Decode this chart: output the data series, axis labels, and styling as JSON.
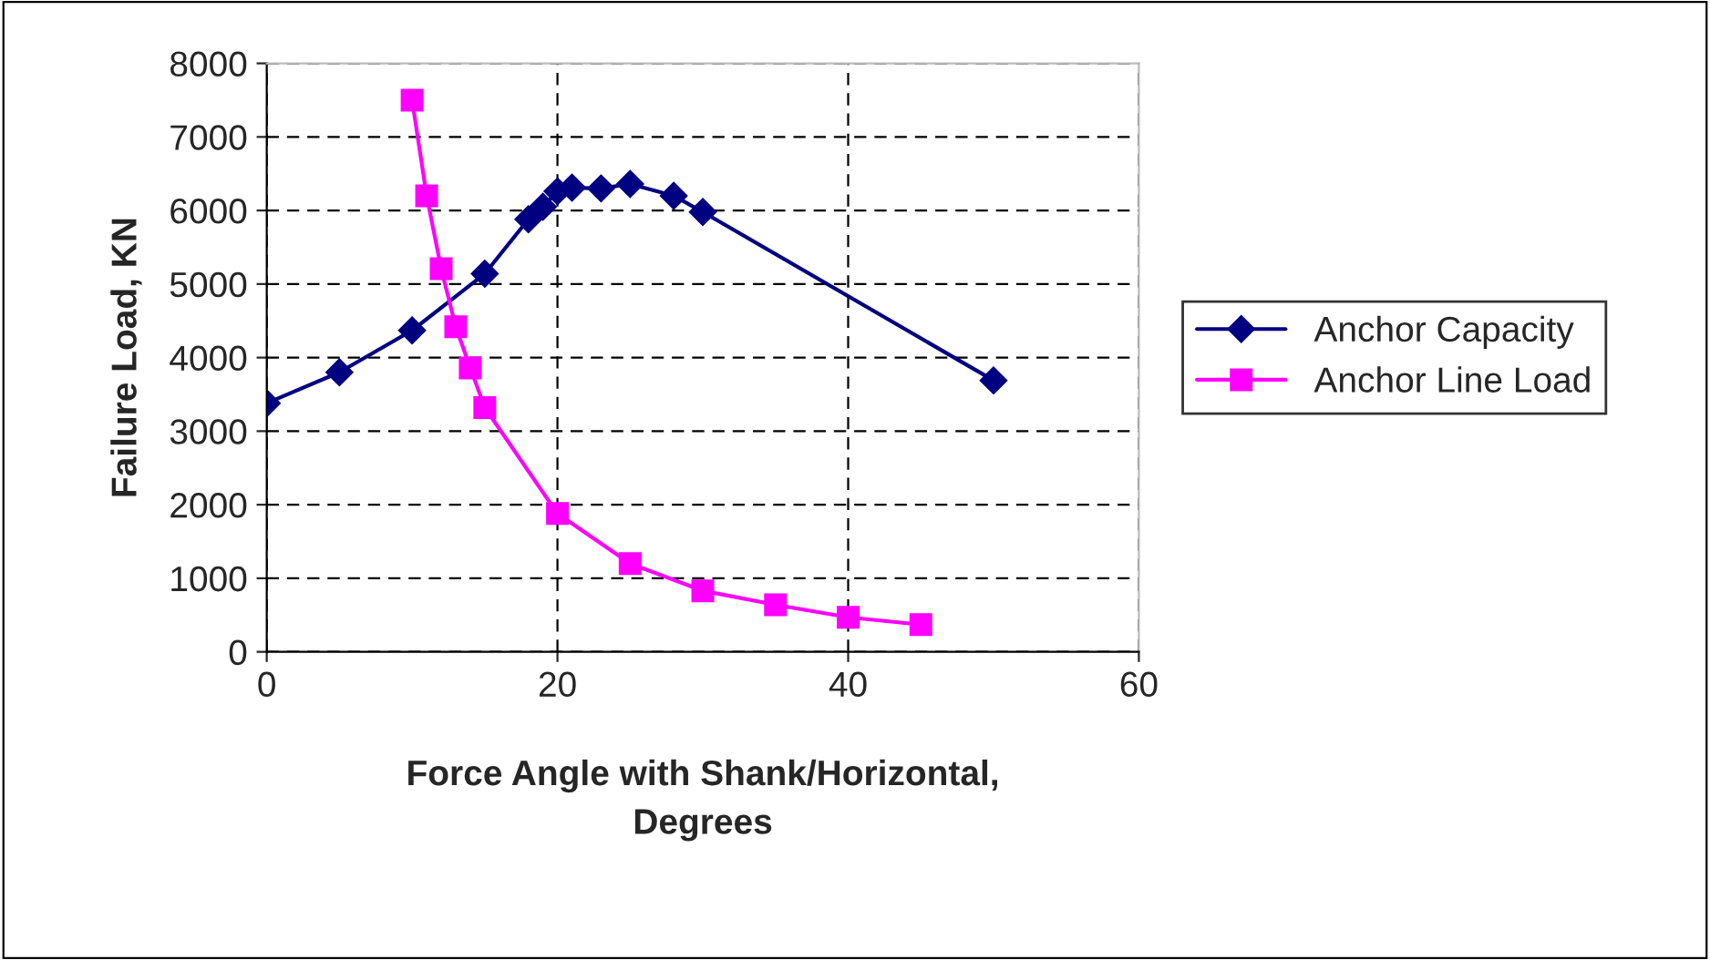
{
  "chart_data": {
    "type": "line",
    "xlabel": "Force Angle with Shank/Horizontal,\nDegrees",
    "ylabel": "Failure Load, KN",
    "xlim": [
      0,
      60
    ],
    "xticks": [
      0,
      20,
      40,
      60
    ],
    "ylim": [
      0,
      8000
    ],
    "yticks": [
      0,
      1000,
      2000,
      3000,
      4000,
      5000,
      6000,
      7000,
      8000
    ],
    "grid": true,
    "legend": "right",
    "line_style": "solid",
    "series": [
      {
        "name": "Anchor Capacity",
        "color": "#000080",
        "marker": "diamond",
        "x": [
          0,
          5,
          10,
          15,
          18,
          19,
          20,
          21,
          23,
          25,
          28,
          30,
          50
        ],
        "values": [
          3380,
          3800,
          4370,
          5140,
          5880,
          6050,
          6260,
          6310,
          6300,
          6360,
          6200,
          5980,
          3690
        ]
      },
      {
        "name": "Anchor Line Load",
        "color": "#ff00ff",
        "marker": "square",
        "x": [
          10,
          11,
          12,
          13,
          14,
          15,
          20,
          25,
          30,
          35,
          40,
          45
        ],
        "values": [
          7500,
          6200,
          5210,
          4420,
          3860,
          3320,
          1880,
          1200,
          830,
          640,
          470,
          370
        ]
      }
    ]
  }
}
